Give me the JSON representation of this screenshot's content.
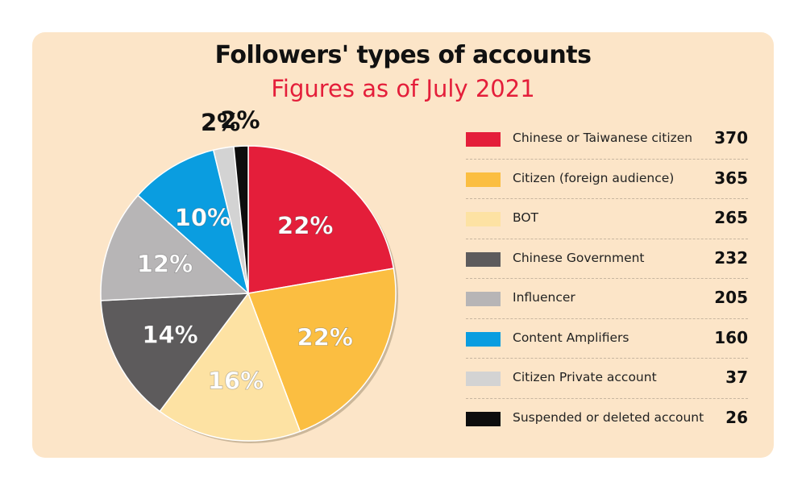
{
  "chart_data": {
    "type": "pie",
    "title": "Followers' types of accounts",
    "subtitle": "Figures as of July 2021",
    "slices": [
      {
        "label": "Chinese or Taiwanese citizen",
        "value": 370,
        "percent_label": "22%",
        "color": "#e41e3a"
      },
      {
        "label": "Citizen (foreign audience)",
        "value": 365,
        "percent_label": "22%",
        "color": "#fbbe41"
      },
      {
        "label": "BOT",
        "value": 265,
        "percent_label": "16%",
        "color": "#fde2a3"
      },
      {
        "label": "Chinese Government",
        "value": 232,
        "percent_label": "14%",
        "color": "#5d5b5c"
      },
      {
        "label": "Influencer",
        "value": 205,
        "percent_label": "12%",
        "color": "#b7b5b6"
      },
      {
        "label": "Content Amplifiers",
        "value": 160,
        "percent_label": "10%",
        "color": "#0a9de0"
      },
      {
        "label": "Citizen Private account",
        "value": 37,
        "percent_label": "2%",
        "color": "#d3d3d3"
      },
      {
        "label": "Suspended or deleted account",
        "value": 26,
        "percent_label": "2%",
        "color": "#0d0d0d"
      }
    ],
    "legend_placement": "right",
    "start_angle": "12 o'clock",
    "direction": "clockwise"
  }
}
